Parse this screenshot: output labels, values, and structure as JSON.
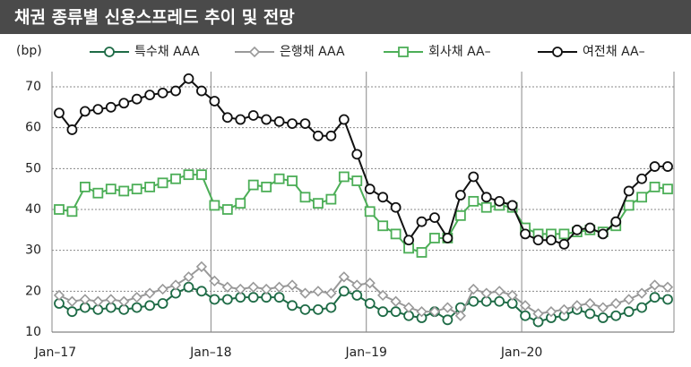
{
  "chart_data": {
    "type": "line",
    "title": "채권 종류별 신용스프레드 추이 및 전망",
    "y_label": "(bp)",
    "categories": [
      "Jan–17",
      null,
      null,
      null,
      null,
      null,
      null,
      null,
      null,
      null,
      null,
      null,
      "Jan–18",
      null,
      null,
      null,
      null,
      null,
      null,
      null,
      null,
      null,
      null,
      null,
      "Jan–19",
      null,
      null,
      null,
      null,
      null,
      null,
      null,
      null,
      null,
      null,
      null,
      "Jan–20",
      null,
      null,
      null,
      null,
      null,
      null,
      null,
      null,
      null,
      null,
      null
    ],
    "ylim": [
      10,
      70
    ],
    "yticks": [
      10,
      20,
      30,
      40,
      50,
      60,
      70
    ],
    "grid": true,
    "series": [
      {
        "name": "특수채 AAA",
        "color": "#1e6b46",
        "marker": "circle",
        "values": [
          17,
          15,
          16,
          15.5,
          16,
          15.5,
          16,
          16.5,
          17,
          19.5,
          21,
          20,
          18,
          18,
          18.5,
          18.5,
          18.5,
          18.5,
          16.5,
          15.5,
          15.5,
          16,
          20,
          19,
          17,
          15,
          15,
          14,
          13.5,
          15,
          13,
          16,
          17.5,
          17.5,
          17.5,
          17,
          14,
          12.5,
          13.5,
          14,
          15.5,
          14.5,
          13.5,
          14,
          15,
          16,
          18.5,
          18
        ]
      },
      {
        "name": "은행채 AAA",
        "color": "#999999",
        "marker": "diamond",
        "values": [
          19,
          17.5,
          18,
          17.5,
          18,
          17.5,
          18.5,
          19.5,
          20.5,
          21.5,
          23.5,
          26,
          22.5,
          21,
          20.5,
          21,
          20.5,
          21,
          21.5,
          19.5,
          20,
          19.5,
          23.5,
          21.5,
          22,
          19,
          17.5,
          16,
          15,
          15,
          16,
          14,
          20.5,
          19.5,
          20,
          19,
          16.5,
          14.5,
          15,
          15.5,
          16.5,
          17,
          16,
          17,
          18,
          19.5,
          21.5,
          21
        ]
      },
      {
        "name": "회사채 AA–",
        "color": "#4cae57",
        "marker": "square",
        "values": [
          40,
          39.5,
          45.5,
          44,
          45,
          44.5,
          45,
          45.5,
          46.5,
          47.5,
          48.5,
          48.5,
          41,
          40,
          41.5,
          46,
          45.5,
          47.5,
          47,
          43,
          41.5,
          42.5,
          48,
          47,
          39.5,
          36,
          34,
          30.5,
          29.5,
          33,
          33,
          38.5,
          42,
          40.5,
          41,
          40.5,
          35.5,
          34,
          34,
          34,
          34.5,
          35,
          34.5,
          36,
          41,
          43,
          45.5,
          45
        ]
      },
      {
        "name": "여전채 AA–",
        "color": "#111111",
        "marker": "circle",
        "values": [
          63.6,
          59.5,
          64,
          64.5,
          65,
          66,
          67,
          68,
          68.5,
          69,
          72,
          69,
          66.5,
          62.5,
          62,
          63,
          62,
          61.5,
          61,
          61,
          58,
          58,
          62,
          53.5,
          45,
          43,
          40.5,
          32.5,
          37,
          38,
          33,
          43.5,
          48,
          43,
          42,
          41,
          34,
          32.5,
          32.5,
          31.5,
          35,
          35.5,
          34,
          37,
          44.5,
          47.5,
          50.5,
          50.5
        ]
      }
    ]
  }
}
